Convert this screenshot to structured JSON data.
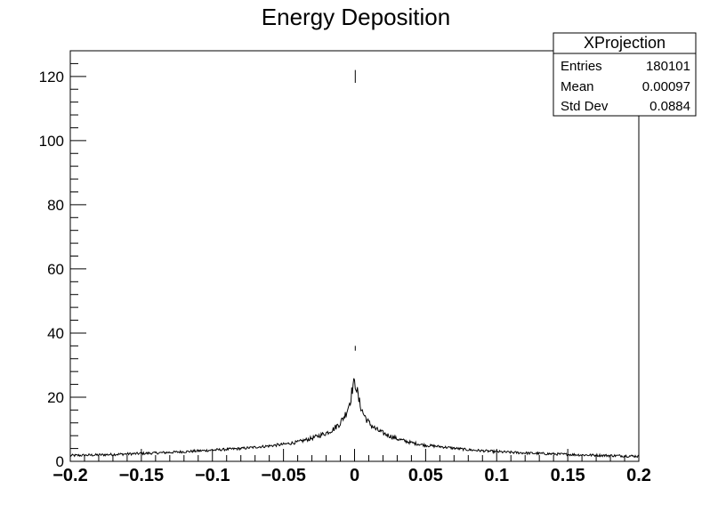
{
  "chart_data": {
    "type": "histogram",
    "title": "Energy Deposition",
    "xlabel": "",
    "ylabel": "",
    "xlim": [
      -0.2,
      0.2
    ],
    "ylim": [
      0,
      128
    ],
    "x_ticks": [
      "−0.2",
      "−0.15",
      "−0.1",
      "−0.05",
      "0",
      "0.05",
      "0.1",
      "0.15",
      "0.2"
    ],
    "y_ticks": [
      "0",
      "20",
      "40",
      "60",
      "80",
      "100",
      "120"
    ],
    "x_tick_values": [
      -0.2,
      -0.15,
      -0.1,
      -0.05,
      0,
      0.05,
      0.1,
      0.15,
      0.2
    ],
    "y_tick_values": [
      0,
      20,
      40,
      60,
      80,
      100,
      120
    ],
    "series": [
      {
        "x": [
          -0.2,
          -0.18,
          -0.16,
          -0.14,
          -0.12,
          -0.1,
          -0.08,
          -0.06,
          -0.05,
          -0.04,
          -0.03,
          -0.02,
          -0.015,
          -0.01,
          -0.006,
          -0.003,
          -0.001,
          0,
          0.001,
          0.003,
          0.006,
          0.01,
          0.015,
          0.02,
          0.03,
          0.04,
          0.05,
          0.06,
          0.08,
          0.1,
          0.12,
          0.14,
          0.16,
          0.18,
          0.2
        ],
        "y": [
          1.8,
          2.0,
          2.3,
          2.6,
          3.0,
          3.5,
          4.0,
          4.8,
          5.3,
          6.0,
          7.2,
          8.8,
          10,
          12,
          15,
          19,
          24,
          122,
          24,
          19,
          15,
          12,
          10,
          8.8,
          7.0,
          5.8,
          5.0,
          4.6,
          3.6,
          3.0,
          2.6,
          2.3,
          2.0,
          1.8,
          1.6
        ]
      }
    ],
    "grid": false,
    "stats_box": {
      "title": "XProjection",
      "rows": [
        {
          "label": "Entries",
          "value": "180101"
        },
        {
          "label": "Mean",
          "value": "0.00097"
        },
        {
          "label": "Std Dev",
          "value": "0.0884"
        }
      ]
    }
  }
}
